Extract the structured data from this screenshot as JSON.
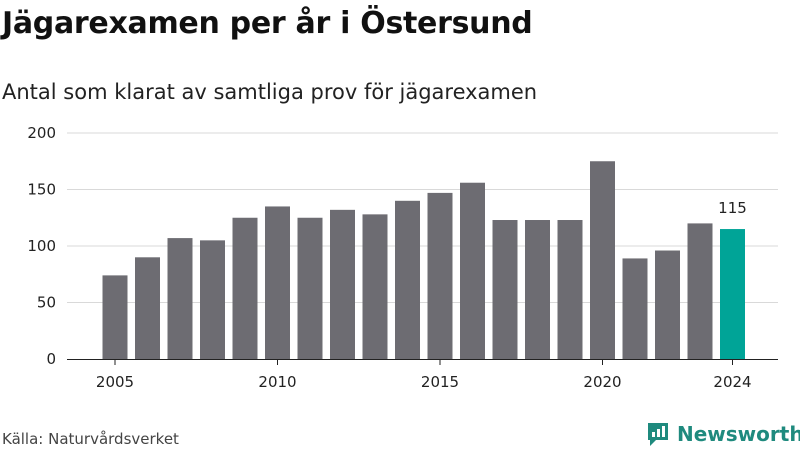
{
  "header": {
    "title": "Jägarexamen per år i Östersund",
    "subtitle": "Antal som klarat av samtliga prov för jägarexamen"
  },
  "footer": {
    "source": "Källa: Naturvårdsverket",
    "brand": "Newsworthy"
  },
  "colors": {
    "bar": "#6d6c72",
    "highlight": "#00a497",
    "grid": "#d9d9d9",
    "brand": "#1f8a7e"
  },
  "chart_data": {
    "type": "bar",
    "categories": [
      "2005",
      "2006",
      "2007",
      "2008",
      "2009",
      "2010",
      "2011",
      "2012",
      "2013",
      "2014",
      "2015",
      "2016",
      "2017",
      "2018",
      "2019",
      "2020",
      "2021",
      "2022",
      "2023",
      "2024"
    ],
    "values": [
      74,
      90,
      107,
      105,
      125,
      135,
      125,
      132,
      128,
      140,
      147,
      156,
      123,
      123,
      123,
      175,
      89,
      96,
      120,
      115
    ],
    "x_tick_labels": [
      "2005",
      "2010",
      "2015",
      "2020",
      "2024"
    ],
    "y_ticks": [
      0,
      50,
      100,
      150,
      200
    ],
    "ylim": [
      0,
      200
    ],
    "highlight_category": "2024",
    "data_labels": [
      {
        "category": "2024",
        "text": "115"
      }
    ],
    "grid": true
  }
}
